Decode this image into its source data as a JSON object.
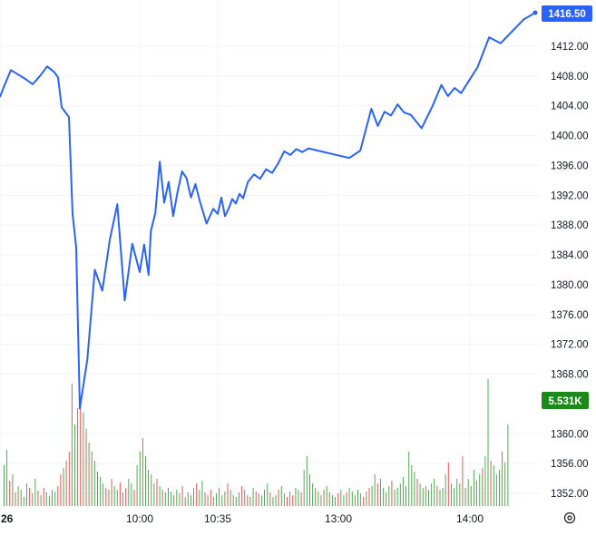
{
  "chart_data": {
    "type": "line",
    "colors": {
      "price_line": "#2962ff",
      "price_label_bg": "#2962ff",
      "volume_up": "#4caf50",
      "volume_down": "#ef5350",
      "volume_label_bg": "#1b8a1b",
      "grid": "#f0f3fa",
      "axis_text": "#131722"
    },
    "grid": true,
    "y_axis": {
      "position": "right",
      "range": [
        1350.4,
        1418.6
      ],
      "ticks": [
        "1412.00",
        "1408.00",
        "1404.00",
        "1400.00",
        "1396.00",
        "1392.00",
        "1388.00",
        "1384.00",
        "1380.00",
        "1376.00",
        "1372.00",
        "1368.00",
        "1360.00",
        "1356.00",
        "1352.00"
      ]
    },
    "x_axis": {
      "ticks": [
        {
          "label": "26",
          "time": "09:30"
        },
        {
          "label": "10:00",
          "time": "10:00"
        },
        {
          "label": "10:35",
          "time": "10:35"
        },
        {
          "label": "13:00",
          "time": "13:00"
        },
        {
          "label": "14:00",
          "time": "14:00"
        }
      ],
      "settings_icon": "settings-gear-icon"
    },
    "last_price": "1416.50",
    "last_volume": "5.531K",
    "series": [
      {
        "points": [
          {
            "t": "09:30",
            "v": 1405.2
          },
          {
            "t": "09:31",
            "v": 1406.5
          },
          {
            "t": "09:33",
            "v": 1408.8
          },
          {
            "t": "09:35",
            "v": 1408.2
          },
          {
            "t": "09:37",
            "v": 1407.6
          },
          {
            "t": "09:39",
            "v": 1406.9
          },
          {
            "t": "09:41",
            "v": 1408.0
          },
          {
            "t": "09:43",
            "v": 1409.3
          },
          {
            "t": "09:45",
            "v": 1408.5
          },
          {
            "t": "09:46",
            "v": 1407.8
          },
          {
            "t": "09:47",
            "v": 1403.8
          },
          {
            "t": "09:49",
            "v": 1402.5
          },
          {
            "t": "09:50",
            "v": 1389.5
          },
          {
            "t": "09:51",
            "v": 1385.0
          },
          {
            "t": "09:52",
            "v": 1363.4
          },
          {
            "t": "09:53",
            "v": 1370.0
          },
          {
            "t": "09:54",
            "v": 1382.0
          },
          {
            "t": "09:55",
            "v": 1379.2
          },
          {
            "t": "09:56",
            "v": 1386.0
          },
          {
            "t": "09:57",
            "v": 1390.8
          },
          {
            "t": "09:58",
            "v": 1377.9
          },
          {
            "t": "09:59",
            "v": 1385.5
          },
          {
            "t": "10:00",
            "v": 1381.7
          },
          {
            "t": "10:02",
            "v": 1385.4
          },
          {
            "t": "10:04",
            "v": 1381.3
          },
          {
            "t": "10:05",
            "v": 1387.2
          },
          {
            "t": "10:07",
            "v": 1389.6
          },
          {
            "t": "10:09",
            "v": 1396.5
          },
          {
            "t": "10:11",
            "v": 1391.0
          },
          {
            "t": "10:13",
            "v": 1393.8
          },
          {
            "t": "10:15",
            "v": 1389.2
          },
          {
            "t": "10:17",
            "v": 1392.5
          },
          {
            "t": "10:19",
            "v": 1395.2
          },
          {
            "t": "10:21",
            "v": 1394.3
          },
          {
            "t": "10:23",
            "v": 1391.7
          },
          {
            "t": "10:25",
            "v": 1393.5
          },
          {
            "t": "10:27",
            "v": 1391.2
          },
          {
            "t": "10:30",
            "v": 1388.2
          },
          {
            "t": "10:33",
            "v": 1390.2
          },
          {
            "t": "10:35",
            "v": 1389.5
          },
          {
            "t": "10:38",
            "v": 1391.7
          },
          {
            "t": "10:41",
            "v": 1389.2
          },
          {
            "t": "10:44",
            "v": 1390.2
          },
          {
            "t": "10:47",
            "v": 1391.5
          },
          {
            "t": "10:50",
            "v": 1390.9
          },
          {
            "t": "10:53",
            "v": 1392.2
          },
          {
            "t": "10:56",
            "v": 1391.6
          },
          {
            "t": "11:00",
            "v": 1393.8
          },
          {
            "t": "11:05",
            "v": 1394.8
          },
          {
            "t": "11:10",
            "v": 1394.2
          },
          {
            "t": "11:15",
            "v": 1395.5
          },
          {
            "t": "11:20",
            "v": 1395.0
          },
          {
            "t": "11:25",
            "v": 1396.3
          },
          {
            "t": "11:30",
            "v": 1397.9
          },
          {
            "t": "11:35",
            "v": 1397.4
          },
          {
            "t": "11:40",
            "v": 1398.2
          },
          {
            "t": "11:45",
            "v": 1397.8
          },
          {
            "t": "11:50",
            "v": 1398.3
          },
          {
            "t": "13:05",
            "v": 1397.0
          },
          {
            "t": "13:10",
            "v": 1398.0
          },
          {
            "t": "13:15",
            "v": 1403.6
          },
          {
            "t": "13:18",
            "v": 1401.3
          },
          {
            "t": "13:21",
            "v": 1403.2
          },
          {
            "t": "13:24",
            "v": 1402.7
          },
          {
            "t": "13:27",
            "v": 1404.2
          },
          {
            "t": "13:30",
            "v": 1403.1
          },
          {
            "t": "13:33",
            "v": 1402.8
          },
          {
            "t": "13:38",
            "v": 1401.0
          },
          {
            "t": "13:43",
            "v": 1404.0
          },
          {
            "t": "13:47",
            "v": 1406.8
          },
          {
            "t": "13:50",
            "v": 1405.3
          },
          {
            "t": "13:53",
            "v": 1406.4
          },
          {
            "t": "13:56",
            "v": 1405.7
          },
          {
            "t": "13:59",
            "v": 1407.1
          },
          {
            "t": "14:02",
            "v": 1409.2
          },
          {
            "t": "14:05",
            "v": 1413.2
          },
          {
            "t": "14:08",
            "v": 1412.4
          },
          {
            "t": "14:11",
            "v": 1414.0
          },
          {
            "t": "14:14",
            "v": 1415.6
          },
          {
            "t": "14:17",
            "v": 1416.5
          }
        ]
      }
    ],
    "volume": {
      "direction_key": "1 = up (green), 0 = down (red)",
      "bars_per_pixel_step": 2.6,
      "values": [
        0.45,
        0.62,
        0.28,
        0.35,
        0.15,
        0.22,
        0.18,
        0.1,
        0.25,
        0.2,
        0.14,
        0.3,
        0.17,
        0.12,
        0.2,
        0.15,
        0.11,
        0.18,
        0.16,
        0.22,
        0.35,
        0.42,
        0.5,
        0.6,
        1.35,
        0.9,
        1.08,
        1.2,
        1.03,
        0.85,
        0.7,
        0.6,
        0.5,
        0.38,
        0.32,
        0.25,
        0.2,
        0.18,
        0.3,
        0.22,
        0.18,
        0.26,
        0.15,
        0.2,
        0.3,
        0.25,
        0.18,
        0.45,
        0.6,
        0.75,
        0.55,
        0.4,
        0.35,
        0.25,
        0.3,
        0.22,
        0.18,
        0.15,
        0.2,
        0.16,
        0.12,
        0.18,
        0.14,
        0.22,
        0.1,
        0.15,
        0.12,
        0.2,
        0.25,
        0.18,
        0.28,
        0.15,
        0.12,
        0.18,
        0.1,
        0.14,
        0.2,
        0.12,
        0.16,
        0.25,
        0.18,
        0.12,
        0.1,
        0.15,
        0.22,
        0.18,
        0.12,
        0.1,
        0.2,
        0.16,
        0.14,
        0.12,
        0.18,
        0.25,
        0.15,
        0.1,
        0.12,
        0.18,
        0.22,
        0.14,
        0.1,
        0.16,
        0.12,
        0.2,
        0.18,
        0.15,
        0.4,
        0.55,
        0.35,
        0.25,
        0.2,
        0.16,
        0.12,
        0.18,
        0.22,
        0.15,
        0.12,
        0.1,
        0.14,
        0.18,
        0.12,
        0.15,
        0.2,
        0.16,
        0.12,
        0.18,
        0.14,
        0.1,
        0.16,
        0.2,
        0.22,
        0.35,
        0.25,
        0.3,
        0.2,
        0.15,
        0.22,
        0.28,
        0.18,
        0.2,
        0.25,
        0.32,
        0.22,
        0.6,
        0.45,
        0.38,
        0.3,
        0.25,
        0.2,
        0.22,
        0.18,
        0.25,
        0.3,
        0.22,
        0.18,
        0.2,
        0.35,
        0.48,
        0.25,
        0.2,
        0.3,
        0.25,
        0.55,
        0.2,
        0.3,
        0.22,
        0.4,
        0.28,
        0.35,
        0.42,
        0.55,
        1.4,
        0.5,
        0.45,
        0.35,
        0.4,
        0.6,
        0.48,
        0.9
      ],
      "directions": [
        1,
        1,
        0,
        1,
        0,
        1,
        0,
        1,
        1,
        0,
        0,
        1,
        0,
        1,
        0,
        1,
        1,
        0,
        1,
        0,
        0,
        1,
        0,
        0,
        0,
        1,
        0,
        0,
        1,
        0,
        1,
        0,
        1,
        0,
        1,
        1,
        0,
        1,
        0,
        1,
        1,
        0,
        1,
        0,
        1,
        1,
        0,
        1,
        1,
        0,
        1,
        0,
        1,
        1,
        0,
        1,
        0,
        1,
        0,
        1,
        0,
        1,
        1,
        0,
        1,
        0,
        1,
        1,
        0,
        1,
        1,
        0,
        1,
        0,
        1,
        1,
        0,
        1,
        1,
        0,
        1,
        0,
        1,
        1,
        0,
        1,
        0,
        1,
        1,
        0,
        1,
        1,
        0,
        1,
        0,
        1,
        1,
        0,
        1,
        1,
        0,
        1,
        0,
        1,
        1,
        0,
        1,
        1,
        0,
        1,
        0,
        1,
        1,
        0,
        1,
        0,
        1,
        1,
        0,
        1,
        1,
        0,
        1,
        1,
        0,
        1,
        1,
        0,
        1,
        0,
        1,
        1,
        0,
        1,
        1,
        0,
        1,
        0,
        1,
        1,
        1,
        1,
        0,
        1,
        1,
        1,
        0,
        1,
        1,
        0,
        1,
        1,
        1,
        0,
        1,
        1,
        1,
        0,
        1,
        1,
        1,
        1,
        0,
        1,
        1,
        0,
        1,
        1,
        1,
        0,
        1,
        1,
        0,
        1,
        1,
        1,
        0,
        1,
        1
      ],
      "ylim": [
        0,
        1.5
      ]
    }
  }
}
